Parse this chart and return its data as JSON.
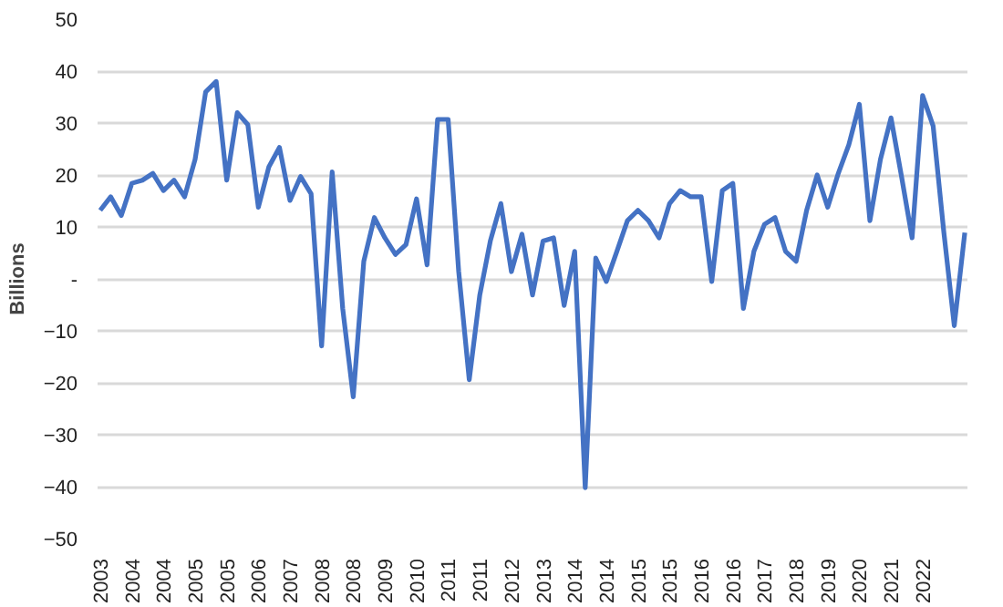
{
  "chart_data": {
    "type": "line",
    "ylabel": "Billions",
    "categories": [
      "2003",
      null,
      null,
      "2004",
      null,
      null,
      "2004",
      null,
      null,
      "2005",
      null,
      null,
      "2005",
      null,
      null,
      "2006",
      null,
      null,
      "2007",
      null,
      null,
      "2008",
      null,
      null,
      "2008",
      null,
      null,
      "2009",
      null,
      null,
      "2010",
      null,
      null,
      "2011",
      null,
      null,
      "2011",
      null,
      null,
      "2012",
      null,
      null,
      "2013",
      null,
      null,
      "2014",
      null,
      null,
      "2014",
      null,
      null,
      "2015",
      null,
      null,
      "2015",
      null,
      null,
      "2016",
      null,
      null,
      "2016",
      null,
      null,
      "2017",
      null,
      null,
      "2018",
      null,
      null,
      "2019",
      null,
      null,
      "2020",
      null,
      null,
      "2021",
      null,
      null,
      "2022",
      null,
      null,
      null,
      null
    ],
    "series": [
      {
        "color": "#4472c4",
        "values": [
          13.2,
          15.8,
          12.2,
          18.4,
          19,
          20.3,
          17,
          19,
          15.8,
          23,
          36,
          38,
          19,
          32,
          29.7,
          13.8,
          21.6,
          25.3,
          15.1,
          19.7,
          16.4,
          -12.9,
          20.6,
          -5.7,
          -22.7,
          3.4,
          11.8,
          7.9,
          4.7,
          6.6,
          15.4,
          2.7,
          30.7,
          30.7,
          1.4,
          -19.4,
          -3.1,
          7.3,
          14.5,
          1.4,
          8.6,
          -3.1,
          7.3,
          7.9,
          -5.1,
          5.3,
          -40.2,
          4,
          -0.5,
          5.3,
          11.2,
          13.2,
          11.2,
          7.9,
          14.5,
          17,
          15.8,
          15.8,
          -0.5,
          17,
          18.4,
          -5.7,
          5.3,
          10.5,
          11.8,
          5.3,
          3.4,
          13.2,
          20,
          13.8,
          20.3,
          25.8,
          33.6,
          11.2,
          23,
          31,
          19.7,
          7.9,
          35.3,
          29.4,
          9.2,
          -9,
          8.9
        ]
      }
    ],
    "ylim": [
      -50,
      50
    ],
    "yticks": [
      -50,
      -40,
      -30,
      -20,
      -10,
      {
        "value": 0,
        "label": "-"
      },
      10,
      20,
      30,
      40,
      50
    ],
    "grid": "y",
    "line_style": "solid"
  }
}
